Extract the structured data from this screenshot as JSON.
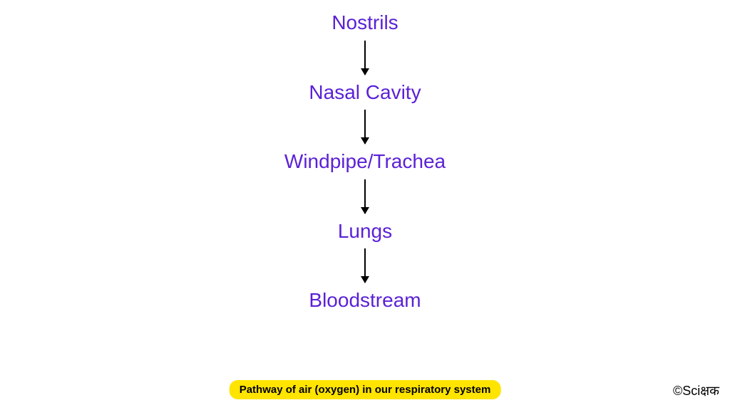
{
  "flowchart": {
    "type": "flowchart",
    "nodes": [
      "Nostrils",
      "Nasal Cavity",
      "Windpipe/Trachea",
      "Lungs",
      "Bloodstream"
    ],
    "node_color": "#5b21d6",
    "node_fontsize": 28,
    "arrow_color": "#000000",
    "arrow_height": 48,
    "background_color": "#ffffff"
  },
  "caption": {
    "text": "Pathway of air (oxygen) in our respiratory system",
    "background_color": "#ffe400",
    "text_color": "#000000",
    "fontsize": 15
  },
  "credit": {
    "text": "©Sciक्षक",
    "fontsize": 18,
    "color": "#000000"
  }
}
